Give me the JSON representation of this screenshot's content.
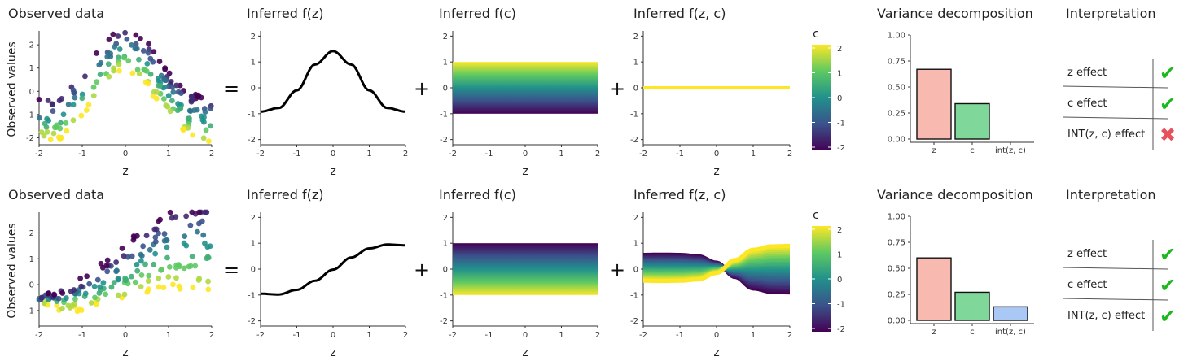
{
  "panels": [
    {
      "observed": {
        "title": "Observed data",
        "xlabel": "z",
        "ylabel": "Observed values",
        "yticks": [
          "2",
          "1",
          "0",
          "-1",
          "-2"
        ],
        "xticks": [
          "-2",
          "-1",
          "0",
          "1",
          "2"
        ]
      },
      "op_eq": "=",
      "op_plus1": "+",
      "op_plus2": "+",
      "fz": {
        "title": "Inferred f(z)",
        "xlabel": "z"
      },
      "fc": {
        "title": "Inferred f(c)",
        "xlabel": "z"
      },
      "fzc": {
        "title": "Inferred f(z, c)",
        "xlabel": "z"
      },
      "colorbar": {
        "label": "c",
        "ticks": [
          "2",
          "1",
          "0",
          "-1",
          "-2"
        ]
      },
      "variance": {
        "title": "Variance decomposition"
      },
      "interpretation": {
        "title": "Interpretation",
        "rows": [
          {
            "label": "z effect",
            "mark": "✔",
            "mark_color": "#1db81d"
          },
          {
            "label": "c effect",
            "mark": "✔",
            "mark_color": "#1db81d"
          },
          {
            "label": "INT(z, c) effect",
            "mark": "✖",
            "mark_color": "#e8505b"
          }
        ]
      }
    },
    {
      "observed": {
        "title": "Observed data",
        "xlabel": "z",
        "ylabel": "Observed values",
        "yticks": [
          "2",
          "1",
          "0",
          "-1"
        ],
        "xticks": [
          "-2",
          "-1",
          "0",
          "1",
          "2"
        ]
      },
      "op_eq": "=",
      "op_plus1": "+",
      "op_plus2": "+",
      "fz": {
        "title": "Inferred f(z)",
        "xlabel": "z"
      },
      "fc": {
        "title": "Inferred f(c)",
        "xlabel": "z"
      },
      "fzc": {
        "title": "Inferred f(z, c)",
        "xlabel": "z"
      },
      "colorbar": {
        "label": "c",
        "ticks": [
          "2",
          "1",
          "0",
          "-1",
          "-2"
        ]
      },
      "variance": {
        "title": "Variance decomposition"
      },
      "interpretation": {
        "title": "Interpretation",
        "rows": [
          {
            "label": "z effect",
            "mark": "✔",
            "mark_color": "#1db81d"
          },
          {
            "label": "c effect",
            "mark": "✔",
            "mark_color": "#1db81d"
          },
          {
            "label": "INT(z, c) effect",
            "mark": "✔",
            "mark_color": "#1db81d"
          }
        ]
      }
    }
  ],
  "chart_data": [
    {
      "type": "scatter",
      "title": "Observed data",
      "xlabel": "z",
      "ylabel": "Observed values",
      "xlim": [
        -2,
        2
      ],
      "ylim": [
        -2.3,
        2.6
      ],
      "xticks": [
        -2,
        -1,
        0,
        1,
        2
      ],
      "yticks": [
        -2,
        -1,
        0,
        1,
        2
      ],
      "colorscale": "viridis",
      "color_variable": "c",
      "model": "f(z) + 0.5*c",
      "points_per_c": 20,
      "c_levels": [
        -2,
        -1.5,
        -1,
        -0.5,
        0,
        0.5,
        1,
        1.5,
        2
      ]
    },
    {
      "type": "line",
      "title": "Inferred f(z)",
      "xlabel": "z",
      "xlim": [
        -2,
        2
      ],
      "ylim": [
        -2.2,
        2.2
      ],
      "xticks": [
        -2,
        -1,
        0,
        1,
        2
      ],
      "yticks": [
        -2,
        -1,
        0,
        1,
        2
      ],
      "x": [
        -2,
        -1.5,
        -1,
        -0.5,
        0,
        0.5,
        1,
        1.5,
        2
      ],
      "series": [
        {
          "values": [
            -0.92,
            -0.78,
            -0.1,
            0.9,
            1.42,
            0.9,
            -0.1,
            -0.78,
            -0.92
          ],
          "color": "#000000"
        }
      ]
    },
    {
      "type": "area",
      "title": "Inferred f(c)",
      "xlabel": "z",
      "xlim": [
        -2,
        2
      ],
      "ylim": [
        -2.2,
        2.2
      ],
      "xticks": [
        -2,
        -1,
        0,
        1,
        2
      ],
      "yticks": [
        -2,
        -1,
        0,
        1,
        2
      ],
      "band": {
        "c_min": -2,
        "c_max": 2,
        "y_at_c_max": -1,
        "y_at_c_min": 1
      }
    },
    {
      "type": "area",
      "title": "Inferred f(z, c)",
      "xlabel": "z",
      "xlim": [
        -2,
        2
      ],
      "ylim": [
        -2.2,
        2.2
      ],
      "xticks": [
        -2,
        -1,
        0,
        1,
        2
      ],
      "yticks": [
        -2,
        -1,
        0,
        1,
        2
      ],
      "x": [
        -2,
        -1.5,
        -1,
        -0.5,
        0,
        0.5,
        1,
        1.5,
        2
      ],
      "lines_per_c": {
        "c=-2": [
          0,
          0,
          0,
          0,
          0,
          0,
          0,
          0,
          0
        ],
        "c=2": [
          0,
          0,
          0,
          0,
          0,
          0,
          0,
          0,
          0
        ]
      },
      "colorbar": {
        "label": "c",
        "ticks": [
          2,
          1,
          0,
          -1,
          -2
        ]
      }
    },
    {
      "type": "bar",
      "title": "Variance decomposition",
      "categories": [
        "z",
        "c",
        "int(z, c)"
      ],
      "values": [
        0.67,
        0.34,
        0.0
      ],
      "colors": [
        "#f8b9b1",
        "#7fd89a",
        "#aac8f5"
      ],
      "ylim": [
        0,
        1.0
      ],
      "yticks": [
        "0.00",
        "0.25",
        "0.50",
        "0.75",
        "1.00"
      ]
    },
    {
      "type": "scatter",
      "title": "Observed data",
      "xlabel": "z",
      "ylabel": "Observed values",
      "xlim": [
        -2,
        2
      ],
      "ylim": [
        -1.6,
        2.8
      ],
      "xticks": [
        -2,
        -1,
        0,
        1,
        2
      ],
      "yticks": [
        -1,
        0,
        1,
        2
      ],
      "colorscale": "viridis",
      "color_variable": "c",
      "model": "f(z) + (0.1 + 0.3*(z+2))*c",
      "points_per_c": 20,
      "c_levels": [
        -2,
        -1.5,
        -1,
        -0.5,
        0,
        0.5,
        1,
        1.5,
        2
      ]
    },
    {
      "type": "line",
      "title": "Inferred f(z)",
      "xlabel": "z",
      "xlim": [
        -2,
        2
      ],
      "ylim": [
        -2.2,
        2.2
      ],
      "xticks": [
        -2,
        -1,
        0,
        1,
        2
      ],
      "yticks": [
        -2,
        -1,
        0,
        1,
        2
      ],
      "x": [
        -2,
        -1.5,
        -1,
        -0.5,
        0,
        0.5,
        1,
        1.5,
        2
      ],
      "series": [
        {
          "values": [
            -0.95,
            -0.98,
            -0.8,
            -0.45,
            -0.02,
            0.45,
            0.8,
            0.95,
            0.92
          ],
          "color": "#000000"
        }
      ]
    },
    {
      "type": "area",
      "title": "Inferred f(c)",
      "xlabel": "z",
      "xlim": [
        -2,
        2
      ],
      "ylim": [
        -2.2,
        2.2
      ],
      "xticks": [
        -2,
        -1,
        0,
        1,
        2
      ],
      "yticks": [
        -2,
        -1,
        0,
        1,
        2
      ],
      "band": {
        "c_min": -2,
        "c_max": 2,
        "y_at_c_max": 1,
        "y_at_c_min": -1
      }
    },
    {
      "type": "area",
      "title": "Inferred f(z, c)",
      "xlabel": "z",
      "xlim": [
        -2,
        2
      ],
      "ylim": [
        -2.2,
        2.2
      ],
      "xticks": [
        -2,
        -1,
        0,
        1,
        2
      ],
      "yticks": [
        -2,
        -1,
        0,
        1,
        2
      ],
      "x": [
        -2,
        -1.5,
        -1,
        -0.5,
        0,
        0.5,
        1,
        1.5,
        2
      ],
      "lines_per_c": {
        "c=-2": [
          0.55,
          0.56,
          0.55,
          0.5,
          0.25,
          -0.3,
          -0.75,
          -0.88,
          -0.9
        ],
        "c=2": [
          -0.45,
          -0.46,
          -0.45,
          -0.4,
          -0.15,
          0.35,
          0.75,
          0.88,
          0.9
        ]
      },
      "colorbar": {
        "label": "c",
        "ticks": [
          2,
          1,
          0,
          -1,
          -2
        ]
      }
    },
    {
      "type": "bar",
      "title": "Variance decomposition",
      "categories": [
        "z",
        "c",
        "int(z, c)"
      ],
      "values": [
        0.6,
        0.27,
        0.13
      ],
      "colors": [
        "#f8b9b1",
        "#7fd89a",
        "#aac8f5"
      ],
      "ylim": [
        0,
        1.0
      ],
      "yticks": [
        "0.00",
        "0.25",
        "0.50",
        "0.75",
        "1.00"
      ]
    }
  ]
}
